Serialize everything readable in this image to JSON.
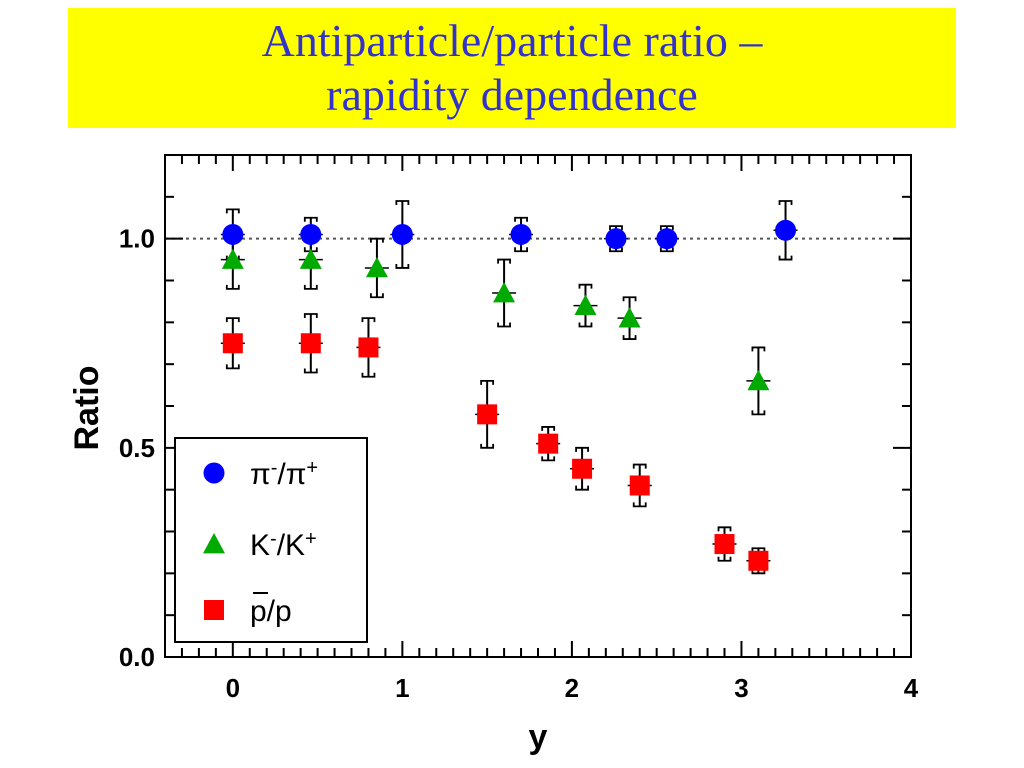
{
  "title": {
    "line1": "Antiparticle/particle ratio –",
    "line2": "rapidity dependence"
  },
  "colors": {
    "title_background": "#ffff00",
    "title_text": "#3333cc",
    "pion": "#0000ff",
    "kaon": "#00aa00",
    "proton": "#ff0000"
  },
  "chart_data": {
    "type": "scatter",
    "xlabel": "y",
    "ylabel": "Ratio",
    "xlim": [
      -0.4,
      4.0
    ],
    "ylim": [
      0.0,
      1.2
    ],
    "x_ticks": [
      "0",
      "1",
      "2",
      "3",
      "4"
    ],
    "x_tick_values": [
      0,
      1,
      2,
      3,
      4
    ],
    "y_ticks": [
      "0.0",
      "0.5",
      "1.0"
    ],
    "y_tick_values": [
      0.0,
      0.5,
      1.0
    ],
    "reference_line": 1.0,
    "legend_position": "bottom-left",
    "series": [
      {
        "name_main": "π⁻/π⁺",
        "marker": "circle",
        "color": "#0000ff",
        "points": [
          {
            "x": 0.0,
            "y": 1.01,
            "err": 0.06
          },
          {
            "x": 0.46,
            "y": 1.01,
            "err": 0.04
          },
          {
            "x": 1.0,
            "y": 1.01,
            "err": 0.08
          },
          {
            "x": 1.7,
            "y": 1.01,
            "err": 0.04
          },
          {
            "x": 2.26,
            "y": 1.0,
            "err": 0.03
          },
          {
            "x": 2.56,
            "y": 1.0,
            "err": 0.03
          },
          {
            "x": 3.26,
            "y": 1.02,
            "err": 0.07
          }
        ]
      },
      {
        "name_main": "K⁻/K⁺",
        "marker": "triangle",
        "color": "#00aa00",
        "points": [
          {
            "x": 0.0,
            "y": 0.95,
            "err": 0.07
          },
          {
            "x": 0.46,
            "y": 0.95,
            "err": 0.07
          },
          {
            "x": 0.85,
            "y": 0.93,
            "err": 0.07
          },
          {
            "x": 1.6,
            "y": 0.87,
            "err": 0.08
          },
          {
            "x": 2.08,
            "y": 0.84,
            "err": 0.05
          },
          {
            "x": 2.34,
            "y": 0.81,
            "err": 0.05
          },
          {
            "x": 3.1,
            "y": 0.66,
            "err": 0.08
          }
        ]
      },
      {
        "name_main": "p/p",
        "marker": "square",
        "color": "#ff0000",
        "points": [
          {
            "x": 0.0,
            "y": 0.75,
            "err": 0.06
          },
          {
            "x": 0.46,
            "y": 0.75,
            "err": 0.07
          },
          {
            "x": 0.8,
            "y": 0.74,
            "err": 0.07
          },
          {
            "x": 1.5,
            "y": 0.58,
            "err": 0.08
          },
          {
            "x": 1.86,
            "y": 0.51,
            "err": 0.04
          },
          {
            "x": 2.06,
            "y": 0.45,
            "err": 0.05
          },
          {
            "x": 2.4,
            "y": 0.41,
            "err": 0.05
          },
          {
            "x": 2.9,
            "y": 0.27,
            "err": 0.04
          },
          {
            "x": 3.1,
            "y": 0.23,
            "err": 0.03
          }
        ]
      }
    ]
  }
}
